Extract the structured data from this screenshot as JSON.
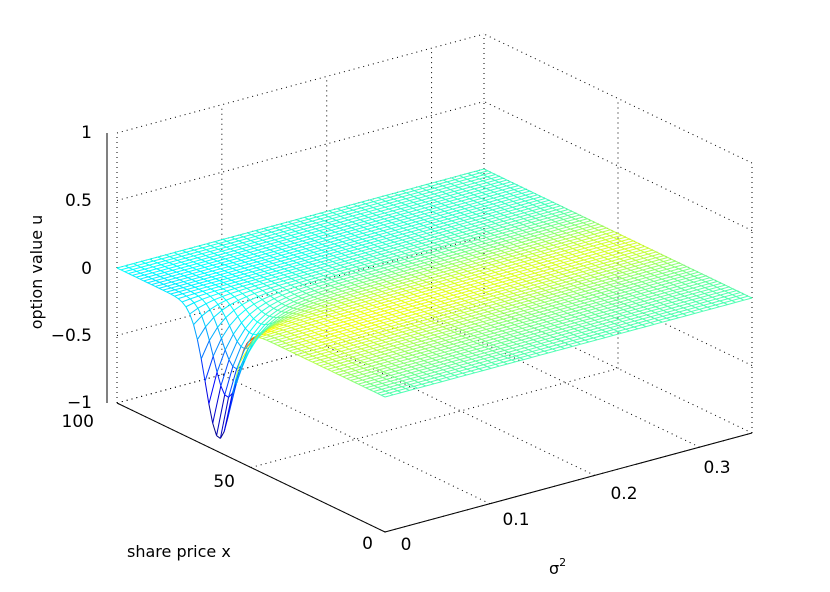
{
  "chart_data": {
    "type": "surface",
    "title": "",
    "xlabel": "share price x",
    "ylabel": "σ",
    "ylabel_superscript": "2",
    "zlabel": "option value u",
    "x_ticks": [
      "0",
      "50",
      "100"
    ],
    "y_ticks": [
      "0",
      "0.1",
      "0.2",
      "0.3"
    ],
    "z_ticks": [
      "−1",
      "−0.5",
      "0",
      "0.5",
      "1"
    ],
    "xlim": [
      0,
      100
    ],
    "ylim": [
      0,
      0.35
    ],
    "zlim": [
      -1,
      1
    ],
    "grid": true,
    "colormap": "jet",
    "surface_description": "u ≈ 0 plane with a localized dip to about −0.9 and peak near 0 at small σ² around x ≈ 55–65",
    "feature": {
      "trough": {
        "x": 60,
        "sigma2": 0.005,
        "u": -0.9
      },
      "peak": {
        "x": 50,
        "sigma2": 0.01,
        "u": 0.0
      }
    }
  }
}
